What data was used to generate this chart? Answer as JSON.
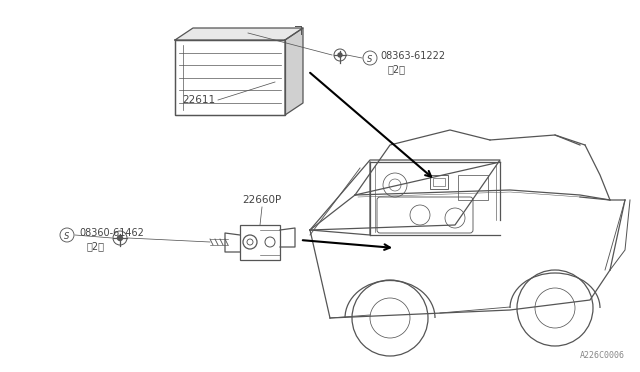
{
  "bg_color": "#ffffff",
  "line_color": "#555555",
  "text_color": "#444444",
  "diagram_id": "A226C0006",
  "ecm_label": "22611",
  "sensor_label": "22660P",
  "screw1_sym": "S",
  "screw1_num": "08363-61222",
  "screw1_qty": "（2）",
  "screw2_sym": "S",
  "screw2_num": "08360-61462",
  "screw2_qty": "（2）"
}
